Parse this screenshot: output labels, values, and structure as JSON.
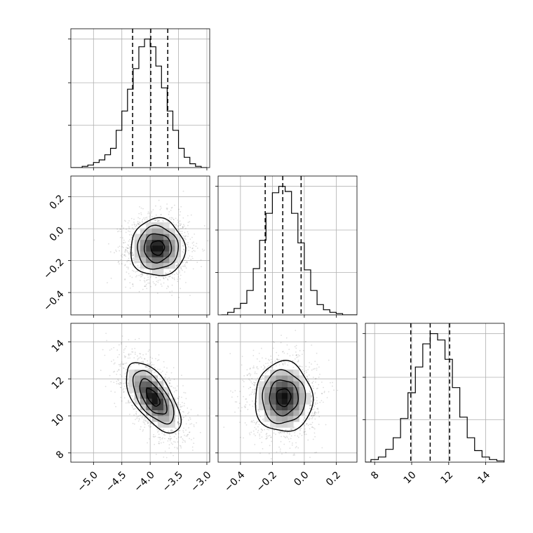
{
  "chart_data": {
    "type": "corner",
    "parameters": [
      "p0",
      "p1",
      "p2"
    ],
    "axis_ranges": {
      "p0": [
        -5.4,
        -2.95
      ],
      "p1": [
        -0.54,
        0.33
      ],
      "p2": [
        7.5,
        15.0
      ]
    },
    "ticks": {
      "p0": {
        "values": [
          -5.0,
          -4.5,
          -4.0,
          -3.5,
          -3.0
        ],
        "labels": [
          "−5.0",
          "−4.5",
          "−4.0",
          "−3.5",
          "−3.0"
        ]
      },
      "p1": {
        "values": [
          -0.4,
          -0.2,
          0.0,
          0.2
        ],
        "labels": [
          "−0.4",
          "−0.2",
          "0.0",
          "0.2"
        ]
      },
      "p2": {
        "values": [
          8,
          10,
          12,
          14
        ],
        "labels": [
          "8",
          "10",
          "12",
          "14"
        ]
      }
    },
    "grid": true,
    "quantiles": {
      "p0": [
        -4.31,
        -3.99,
        -3.69
      ],
      "p1": [
        -0.245,
        -0.135,
        -0.02
      ],
      "p2": [
        9.95,
        11.0,
        12.05
      ]
    },
    "marginals": [
      {
        "param": "p0",
        "bin_start": -5.4,
        "bin_width": 0.1,
        "values": [
          0,
          0,
          0.01,
          0.02,
          0.04,
          0.06,
          0.1,
          0.15,
          0.29,
          0.44,
          0.61,
          0.77,
          0.94,
          1.0,
          0.94,
          0.79,
          0.62,
          0.44,
          0.29,
          0.15,
          0.08,
          0.03,
          0.01,
          0
        ]
      },
      {
        "param": "p1",
        "bin_start": -0.52,
        "bin_width": 0.04,
        "values": [
          0,
          0.02,
          0.05,
          0.09,
          0.19,
          0.36,
          0.58,
          0.79,
          0.95,
          1.0,
          0.96,
          0.79,
          0.56,
          0.35,
          0.19,
          0.08,
          0.04,
          0.02,
          0.01,
          0,
          0,
          0
        ]
      },
      {
        "param": "p2",
        "bin_start": 7.4,
        "bin_width": 0.4,
        "values": [
          0,
          0.02,
          0.04,
          0.1,
          0.19,
          0.34,
          0.54,
          0.74,
          0.92,
          1.0,
          0.95,
          0.8,
          0.58,
          0.35,
          0.19,
          0.09,
          0.04,
          0.02,
          0.01
        ]
      }
    ],
    "joints": [
      {
        "x": "p0",
        "y": "p1",
        "center": [
          -3.87,
          -0.12
        ],
        "sd": [
          0.24,
          0.09
        ],
        "corr": 0.0
      },
      {
        "x": "p0",
        "y": "p2",
        "center": [
          -3.95,
          11.0
        ],
        "sd": [
          0.24,
          0.95
        ],
        "corr": -0.62
      },
      {
        "x": "p1",
        "y": "p2",
        "center": [
          -0.13,
          11.0
        ],
        "sd": [
          0.09,
          0.95
        ],
        "corr": 0.0
      }
    ],
    "contour_levels_sigma": [
      0.5,
      1.0,
      1.5,
      2.0
    ]
  }
}
